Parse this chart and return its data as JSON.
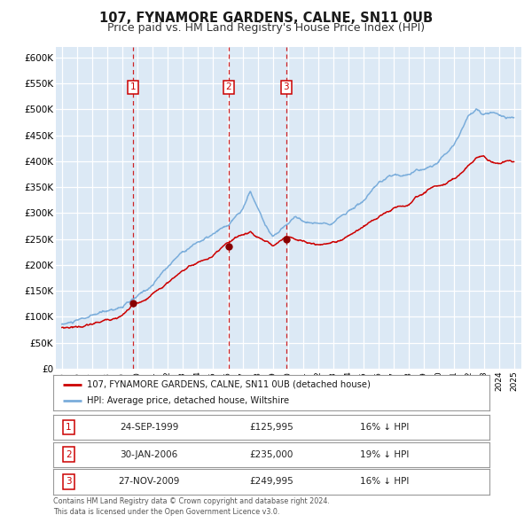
{
  "title": "107, FYNAMORE GARDENS, CALNE, SN11 0UB",
  "subtitle": "Price paid vs. HM Land Registry's House Price Index (HPI)",
  "ylim": [
    0,
    620000
  ],
  "yticks": [
    0,
    50000,
    100000,
    150000,
    200000,
    250000,
    300000,
    350000,
    400000,
    450000,
    500000,
    550000,
    600000
  ],
  "ytick_labels": [
    "£0",
    "£50K",
    "£100K",
    "£150K",
    "£200K",
    "£250K",
    "£300K",
    "£350K",
    "£400K",
    "£450K",
    "£500K",
    "£550K",
    "£600K"
  ],
  "xlim_start": 1994.6,
  "xlim_end": 2025.5,
  "background_color": "#dce9f5",
  "grid_color": "#ffffff",
  "red_line_color": "#cc0000",
  "blue_line_color": "#7aaddb",
  "sale_marker_color": "#880000",
  "vline_color": "#cc0000",
  "title_fontsize": 10.5,
  "subtitle_fontsize": 9,
  "legend_label_red": "107, FYNAMORE GARDENS, CALNE, SN11 0UB (detached house)",
  "legend_label_blue": "HPI: Average price, detached house, Wiltshire",
  "sales": [
    {
      "num": 1,
      "date_x": 1999.73,
      "price": 125995,
      "pct": "16%",
      "date_label": "24-SEP-1999",
      "price_label": "£125,995"
    },
    {
      "num": 2,
      "date_x": 2006.08,
      "price": 235000,
      "pct": "19%",
      "date_label": "30-JAN-2006",
      "price_label": "£235,000"
    },
    {
      "num": 3,
      "date_x": 2009.9,
      "price": 249995,
      "pct": "16%",
      "date_label": "27-NOV-2009",
      "price_label": "£249,995"
    }
  ],
  "footer_line1": "Contains HM Land Registry data © Crown copyright and database right 2024.",
  "footer_line2": "This data is licensed under the Open Government Licence v3.0.",
  "hpi_x": [
    1995.0,
    1996.0,
    1997.0,
    1998.0,
    1999.0,
    2000.0,
    2001.0,
    2002.0,
    2003.0,
    2004.0,
    2005.0,
    2006.0,
    2007.0,
    2007.5,
    2008.0,
    2008.5,
    2009.0,
    2009.5,
    2010.0,
    2010.5,
    2011.0,
    2011.5,
    2012.0,
    2012.5,
    2013.0,
    2014.0,
    2015.0,
    2016.0,
    2017.0,
    2018.0,
    2019.0,
    2020.0,
    2021.0,
    2021.5,
    2022.0,
    2022.5,
    2023.0,
    2023.5,
    2024.0,
    2024.5,
    2025.0
  ],
  "hpi_y": [
    85000,
    90000,
    97000,
    105000,
    115000,
    130000,
    152000,
    187000,
    218000,
    238000,
    250000,
    264000,
    292000,
    327000,
    295000,
    263000,
    243000,
    252000,
    267000,
    282000,
    272000,
    270000,
    266000,
    270000,
    276000,
    297000,
    317000,
    342000,
    357000,
    362000,
    372000,
    387000,
    422000,
    452000,
    482000,
    502000,
    492000,
    497000,
    494000,
    490000,
    492000
  ],
  "red_x": [
    1995.0,
    1996.0,
    1997.0,
    1998.0,
    1999.0,
    1999.73,
    2000.5,
    2001.0,
    2002.0,
    2003.0,
    2004.0,
    2005.0,
    2006.08,
    2006.5,
    2007.0,
    2007.5,
    2008.0,
    2008.5,
    2009.0,
    2009.9,
    2010.5,
    2011.0,
    2011.5,
    2012.0,
    2012.5,
    2013.0,
    2014.0,
    2015.0,
    2016.0,
    2017.0,
    2018.0,
    2018.5,
    2019.0,
    2019.5,
    2020.0,
    2020.5,
    2021.0,
    2021.5,
    2022.0,
    2022.5,
    2023.0,
    2023.5,
    2024.0,
    2024.5,
    2025.0
  ],
  "red_y": [
    79000,
    82000,
    86000,
    94000,
    106000,
    125995,
    130000,
    140000,
    162000,
    188000,
    204000,
    216000,
    235000,
    244000,
    250000,
    256000,
    246000,
    238000,
    230000,
    249995,
    246000,
    243000,
    238000,
    235000,
    236000,
    240000,
    253000,
    268000,
    288000,
    305000,
    312000,
    328000,
    337000,
    348000,
    353000,
    358000,
    368000,
    382000,
    397000,
    413000,
    418000,
    408000,
    403000,
    406000,
    405000
  ]
}
